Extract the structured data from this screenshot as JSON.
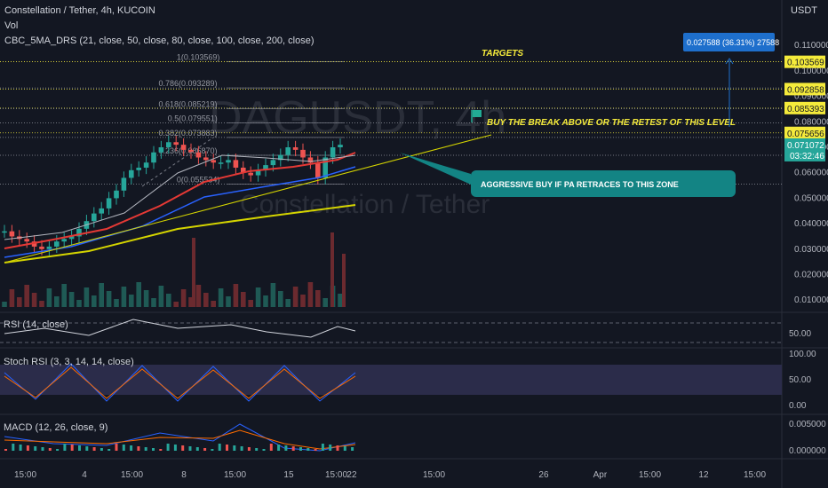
{
  "header": {
    "symbol_line": "Constellation / Tether, 4h, KUCOIN",
    "vol_label": "Vol",
    "indicator_line": "CBC_5MA_DRS (21, close, 50, close, 80, close, 100, close, 200, close)"
  },
  "currency_label": "USDT",
  "watermark": {
    "symbol": "DAGUSDT, 4h",
    "name": "Constellation / Tether"
  },
  "fib_levels": [
    {
      "label": "1(0.103569)",
      "value": 0.103569
    },
    {
      "label": "0.786(0.093289)",
      "value": 0.093289
    },
    {
      "label": "0.618(0.085219)",
      "value": 0.085219
    },
    {
      "label": "0.5(0.079551)",
      "value": 0.079551
    },
    {
      "label": "0.382(0.073883)",
      "value": 0.073883
    },
    {
      "label": "0.236(0.066870)",
      "value": 0.06687
    },
    {
      "label": "0(0.055534)",
      "value": 0.055534
    }
  ],
  "annotations": {
    "targets": "TARGETS",
    "buy_break": "BUY THE BREAK ABOVE OR THE RETEST OF THIS LEVEL",
    "aggressive": "AGGRESSIVE BUY IF PA RETRACES TO THIS ZONE",
    "measure": "0.027588 (36.31%) 27588"
  },
  "price_axis": {
    "ticks": [
      "0.110000",
      "0.100000",
      "0.090000",
      "0.080000",
      "0.070000",
      "0.060000",
      "0.050000",
      "0.040000",
      "0.030000",
      "0.020000",
      "0.010000"
    ],
    "tick_values": [
      0.11,
      0.1,
      0.09,
      0.08,
      0.07,
      0.06,
      0.05,
      0.04,
      0.03,
      0.02,
      0.01
    ],
    "target_boxes": [
      {
        "label": "0.103569",
        "value": 0.103569
      },
      {
        "label": "0.092858",
        "value": 0.092858
      },
      {
        "label": "0.085393",
        "value": 0.085393
      },
      {
        "label": "0.075656",
        "value": 0.075656
      }
    ],
    "current_price": "0.071072",
    "countdown": "03:32:46"
  },
  "rsi": {
    "label": "RSI (14, close)",
    "ticks": [
      "50.00"
    ]
  },
  "stoch": {
    "label": "Stoch RSI (3, 3, 14, 14, close)",
    "ticks": [
      "100.00",
      "50.00",
      "0.00"
    ]
  },
  "macd": {
    "label": "MACD (12, 26, close, 9)",
    "ticks": [
      "0.005000",
      "0.000000"
    ]
  },
  "time_axis": [
    "15:00",
    "4",
    "15:00",
    "8",
    "15:00",
    "15",
    "15:00",
    "22",
    "15:00",
    "26",
    "Apr",
    "15:00",
    "12",
    "15:00",
    "19",
    "15:00"
  ],
  "colors": {
    "background": "#131722",
    "up": "#26a69a",
    "down": "#ef5350",
    "fib": "#9598a1",
    "target_yellow": "#f5eb3b",
    "trendline": "#d4d400",
    "ma_red": "#e53935",
    "ma_blue": "#2962ff",
    "ma_gray": "#b2b5be",
    "callout": "#138484",
    "measure_box": "#1e6fcc",
    "flag": "#22ab94"
  },
  "chart_data": {
    "type": "candlestick",
    "title": "Constellation / Tether, 4h, KUCOIN",
    "ylim": [
      0,
      0.115
    ],
    "x_ticks": [
      "15:00",
      "4",
      "15:00",
      "8",
      "15:00",
      "15",
      "15:00",
      "22",
      "15:00",
      "26",
      "Apr",
      "15:00",
      "12",
      "15:00",
      "19",
      "15:00"
    ],
    "close_series": [
      0.037,
      0.035,
      0.034,
      0.033,
      0.031,
      0.03,
      0.031,
      0.033,
      0.034,
      0.035,
      0.038,
      0.041,
      0.044,
      0.046,
      0.05,
      0.053,
      0.058,
      0.061,
      0.062,
      0.064,
      0.068,
      0.07,
      0.072,
      0.071,
      0.069,
      0.068,
      0.066,
      0.065,
      0.064,
      0.064,
      0.065,
      0.062,
      0.06,
      0.059,
      0.061,
      0.063,
      0.065,
      0.067,
      0.07,
      0.069,
      0.066,
      0.064,
      0.058,
      0.066,
      0.07,
      0.071
    ],
    "last_price": 0.071072,
    "fib_retracement": [
      0.103569,
      0.093289,
      0.085219,
      0.079551,
      0.073883,
      0.06687,
      0.055534
    ],
    "targets": [
      0.103569,
      0.092858,
      0.085393,
      0.075656
    ],
    "measured_move": 0.027588,
    "measured_move_pct": 36.31
  }
}
